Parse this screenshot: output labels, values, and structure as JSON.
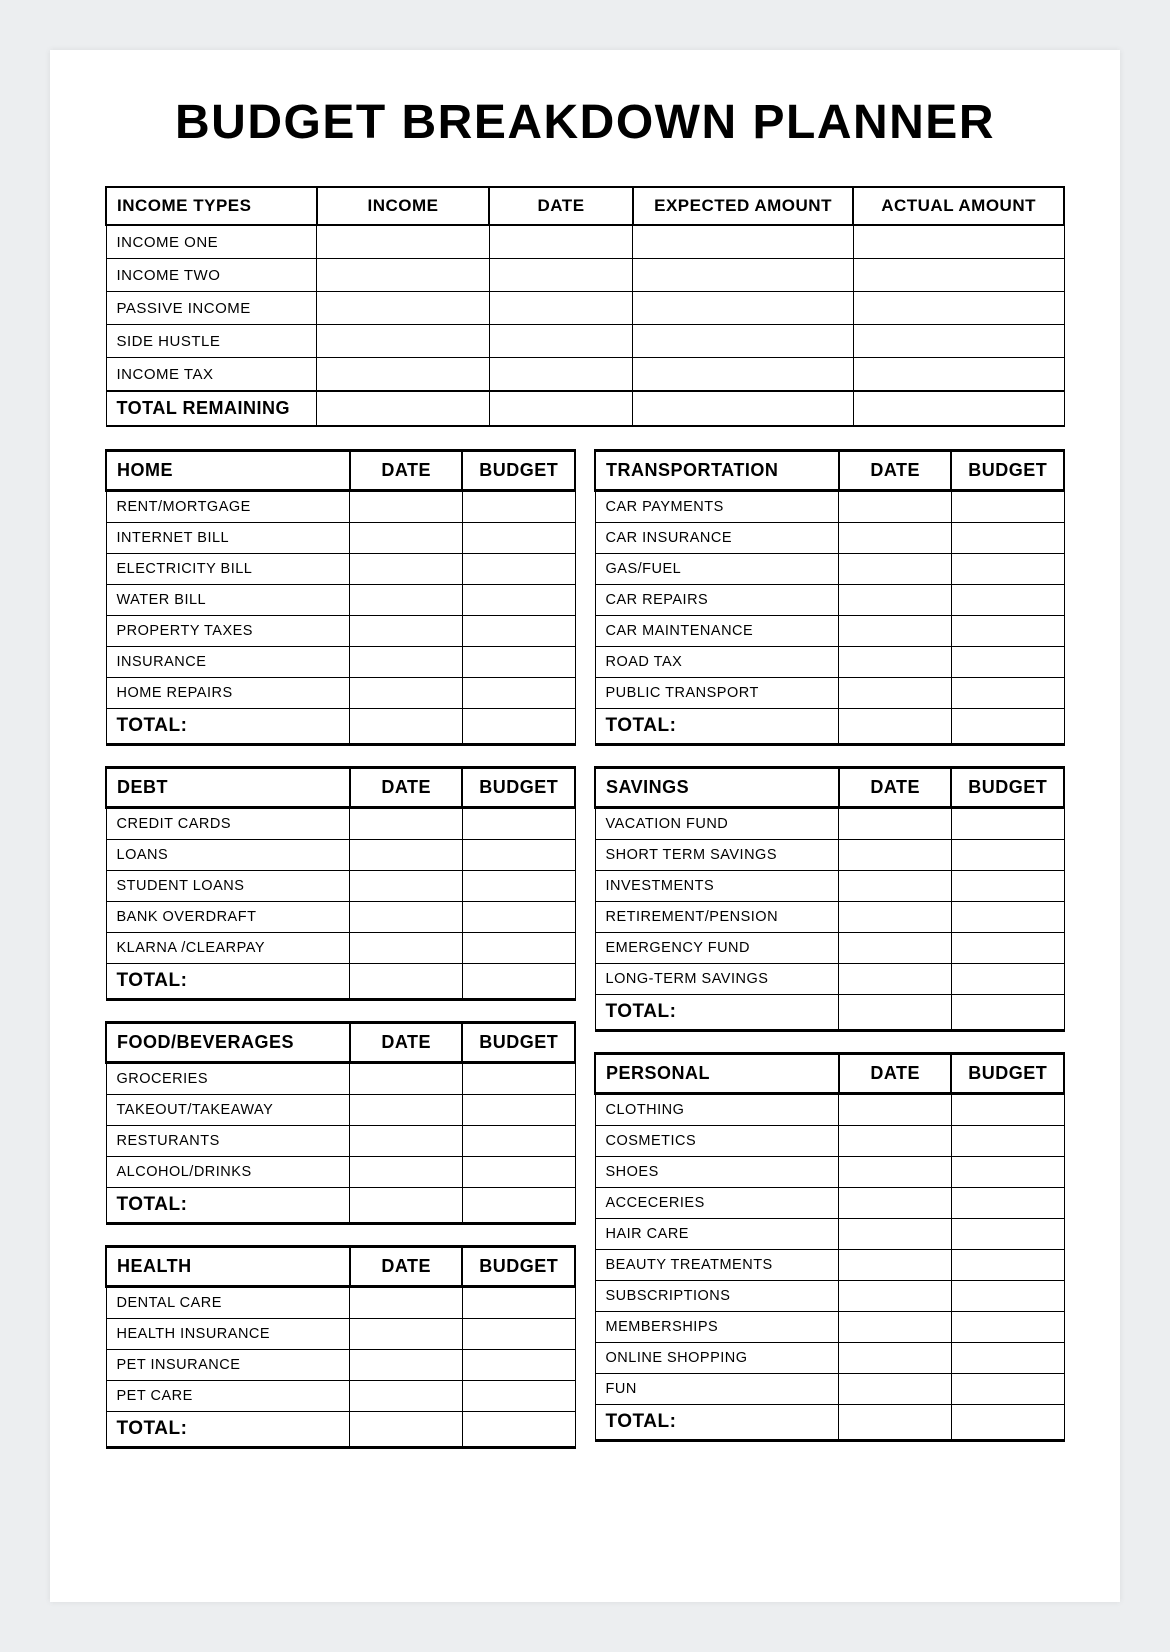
{
  "title": "BUDGET BREAKDOWN PLANNER",
  "income": {
    "headers": [
      "INCOME TYPES",
      "INCOME",
      "DATE",
      "EXPECTED AMOUNT",
      "ACTUAL AMOUNT"
    ],
    "rows": [
      "INCOME ONE",
      "INCOME TWO",
      "PASSIVE INCOME",
      "SIDE HUSTLE",
      "INCOME TAX"
    ],
    "total_label": "TOTAL REMAINING"
  },
  "left_sections": [
    {
      "name": "HOME",
      "headers": [
        "DATE",
        "BUDGET"
      ],
      "rows": [
        "RENT/MORTGAGE",
        "INTERNET BILL",
        "ELECTRICITY BILL",
        "WATER BILL",
        "PROPERTY TAXES",
        "INSURANCE",
        "HOME REPAIRS"
      ],
      "total_label": "TOTAL:"
    },
    {
      "name": "DEBT",
      "headers": [
        "DATE",
        "BUDGET"
      ],
      "rows": [
        "CREDIT CARDS",
        "LOANS",
        "STUDENT LOANS",
        "BANK OVERDRAFT",
        "KLARNA /CLEARPAY"
      ],
      "total_label": "TOTAL:"
    },
    {
      "name": "FOOD/BEVERAGES",
      "headers": [
        "DATE",
        "BUDGET"
      ],
      "rows": [
        "GROCERIES",
        "TAKEOUT/TAKEAWAY",
        "RESTURANTS",
        "ALCOHOL/DRINKS"
      ],
      "total_label": "TOTAL:"
    },
    {
      "name": "HEALTH",
      "headers": [
        "DATE",
        "BUDGET"
      ],
      "rows": [
        "DENTAL CARE",
        "HEALTH INSURANCE",
        "PET INSURANCE",
        "PET CARE"
      ],
      "total_label": "TOTAL:"
    }
  ],
  "right_sections": [
    {
      "name": "TRANSPORTATION",
      "headers": [
        "DATE",
        "BUDGET"
      ],
      "rows": [
        "CAR PAYMENTS",
        "CAR INSURANCE",
        "GAS/FUEL",
        "CAR REPAIRS",
        "CAR MAINTENANCE",
        "ROAD TAX",
        "PUBLIC TRANSPORT"
      ],
      "total_label": "TOTAL:"
    },
    {
      "name": "SAVINGS",
      "headers": [
        "DATE",
        "BUDGET"
      ],
      "rows": [
        "VACATION FUND",
        "SHORT TERM SAVINGS",
        "INVESTMENTS",
        "RETIREMENT/PENSION",
        "EMERGENCY FUND",
        "LONG-TERM SAVINGS"
      ],
      "total_label": "TOTAL:"
    },
    {
      "name": "PERSONAL",
      "headers": [
        "DATE",
        "BUDGET"
      ],
      "rows": [
        "CLOTHING",
        "COSMETICS",
        "SHOES",
        "ACCECERIES",
        "HAIR CARE",
        "BEAUTY TREATMENTS",
        "SUBSCRIPTIONS",
        "MEMBERSHIPS",
        "ONLINE SHOPPING",
        "FUN"
      ],
      "total_label": "TOTAL:"
    }
  ]
}
